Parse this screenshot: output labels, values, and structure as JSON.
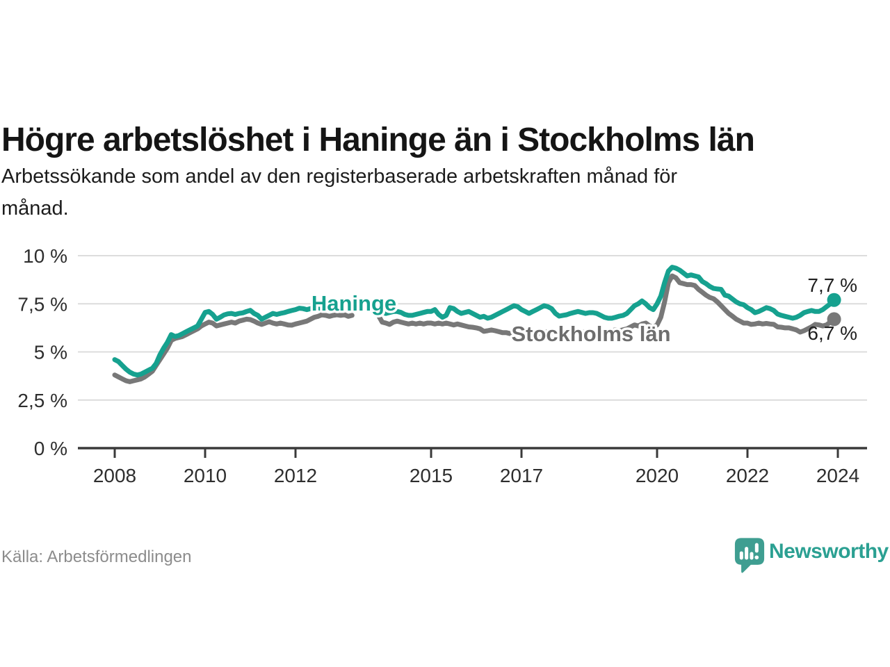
{
  "title": "Högre arbetslöshet i Haninge än i Stockholms län",
  "subtitle": {
    "line1": "Arbetssökande som andel av den registerbaserade arbetskraften månad för",
    "line2": "månad."
  },
  "source": "Källa: Arbetsförmedlingen",
  "branding": {
    "wordmark": "Newsworthy",
    "icon": "newsworthy-speech-bubble-bar-chart-icon",
    "icon_color": "#3f9e91",
    "wordmark_color": "#2ba092"
  },
  "colors": {
    "accent_teal": "#16a18f",
    "line_gray": "#787878",
    "grid": "#dcdcdc",
    "axis": "#3a3a3a",
    "axis_text": "#2e2e2e",
    "value_label_text": "#1f1f1f",
    "series_label_gray": "#6e6e6e",
    "background": "#ffffff"
  },
  "chart_data": {
    "type": "line",
    "title": "Högre arbetslöshet i Haninge än i Stockholms län",
    "xlabel": "",
    "ylabel": "",
    "frequency": "monthly",
    "x_start_year": 2008,
    "ylim": [
      0,
      10
    ],
    "grid": "horizontal",
    "legend_position": "inline-labels",
    "y_ticks": [
      {
        "value": 0,
        "label": "0 %"
      },
      {
        "value": 2.5,
        "label": "2,5 %"
      },
      {
        "value": 5,
        "label": "5 %"
      },
      {
        "value": 7.5,
        "label": "7,5 %"
      },
      {
        "value": 10,
        "label": "10 %"
      }
    ],
    "x_ticks": [
      "2008",
      "2010",
      "2012",
      "2015",
      "2017",
      "2020",
      "2022",
      "2024"
    ],
    "series": [
      {
        "name": "Haninge",
        "color": "#16a18f",
        "end_value": 7.7,
        "end_label": "7,7 %",
        "values": [
          4.6,
          4.5,
          4.3,
          4.1,
          3.95,
          3.85,
          3.8,
          3.85,
          3.95,
          4.05,
          4.15,
          4.4,
          4.85,
          5.2,
          5.5,
          5.9,
          5.8,
          5.85,
          5.95,
          6.05,
          6.15,
          6.25,
          6.35,
          6.7,
          7.05,
          7.1,
          6.95,
          6.7,
          6.8,
          6.92,
          6.98,
          7.0,
          6.95,
          7.0,
          7.03,
          7.1,
          7.16,
          7.0,
          6.9,
          6.7,
          6.8,
          6.9,
          7.0,
          6.95,
          7.0,
          7.04,
          7.1,
          7.15,
          7.2,
          7.27,
          7.25,
          7.2,
          7.25,
          7.3,
          7.3,
          7.25,
          7.3,
          7.3,
          7.3,
          7.3,
          7.3,
          7.25,
          7.3,
          7.2,
          null,
          null,
          null,
          null,
          null,
          null,
          7.0,
          7.05,
          7.0,
          7.05,
          7.1,
          7.1,
          7.05,
          6.95,
          6.9,
          6.9,
          6.95,
          7.0,
          7.05,
          7.1,
          7.1,
          7.2,
          6.95,
          6.8,
          6.9,
          7.3,
          7.25,
          7.1,
          7.0,
          7.05,
          7.1,
          7.0,
          6.9,
          6.8,
          6.85,
          6.75,
          6.8,
          6.9,
          7.0,
          7.1,
          7.2,
          7.3,
          7.4,
          7.35,
          7.2,
          7.1,
          7.0,
          7.1,
          7.2,
          7.3,
          7.4,
          7.35,
          7.25,
          7.0,
          6.86,
          6.9,
          6.93,
          7.0,
          7.05,
          7.1,
          7.05,
          7.0,
          7.04,
          7.04,
          7.0,
          6.9,
          6.8,
          6.75,
          6.75,
          6.8,
          6.86,
          6.9,
          7.0,
          7.2,
          7.4,
          7.5,
          7.65,
          7.5,
          7.3,
          7.2,
          7.5,
          7.9,
          8.6,
          9.2,
          9.4,
          9.35,
          9.25,
          9.1,
          8.95,
          9.0,
          8.95,
          8.9,
          8.66,
          8.55,
          8.4,
          8.3,
          8.27,
          8.25,
          7.95,
          7.9,
          7.75,
          7.6,
          7.5,
          7.45,
          7.3,
          7.2,
          7.04,
          7.1,
          7.2,
          7.3,
          7.25,
          7.15,
          6.97,
          6.9,
          6.85,
          6.8,
          6.75,
          6.8,
          6.9,
          7.04,
          7.1,
          7.15,
          7.1,
          7.1,
          7.2,
          7.35,
          7.5,
          7.7
        ]
      },
      {
        "name": "Stockholms län",
        "color": "#787878",
        "end_value": 6.7,
        "end_label": "6,7 %",
        "values": [
          3.8,
          3.7,
          3.6,
          3.5,
          3.45,
          3.5,
          3.55,
          3.6,
          3.7,
          3.85,
          4.0,
          4.3,
          4.6,
          4.9,
          5.2,
          5.6,
          5.7,
          5.75,
          5.8,
          5.9,
          6.0,
          6.1,
          6.2,
          6.35,
          6.45,
          6.55,
          6.5,
          6.35,
          6.4,
          6.45,
          6.5,
          6.55,
          6.5,
          6.6,
          6.65,
          6.7,
          6.68,
          6.6,
          6.5,
          6.43,
          6.5,
          6.57,
          6.5,
          6.45,
          6.5,
          6.45,
          6.4,
          6.39,
          6.45,
          6.5,
          6.55,
          6.6,
          6.7,
          6.8,
          6.85,
          6.93,
          6.9,
          6.85,
          6.9,
          6.93,
          6.9,
          6.93,
          6.85,
          6.9,
          null,
          null,
          null,
          null,
          null,
          null,
          6.9,
          6.55,
          6.5,
          6.43,
          6.55,
          6.6,
          6.55,
          6.5,
          6.45,
          6.5,
          6.45,
          6.5,
          6.45,
          6.5,
          6.5,
          6.45,
          6.5,
          6.45,
          6.5,
          6.45,
          6.4,
          6.45,
          6.4,
          6.35,
          6.3,
          6.28,
          6.25,
          6.2,
          6.07,
          6.1,
          6.14,
          6.1,
          6.05,
          6.0,
          6.0,
          5.95,
          6.0,
          6.05,
          6.0,
          5.95,
          6.0,
          6.05,
          6.0,
          5.95,
          6.0,
          6.05,
          6.0,
          5.95,
          6.0,
          6.05,
          6.0,
          6.05,
          6.1,
          6.05,
          6.0,
          6.05,
          6.1,
          6.05,
          6.0,
          6.05,
          6.1,
          6.05,
          6.1,
          6.15,
          6.1,
          6.15,
          6.2,
          6.3,
          6.4,
          6.35,
          6.45,
          6.5,
          6.35,
          6.3,
          6.4,
          6.8,
          7.6,
          8.6,
          8.95,
          8.85,
          8.6,
          8.55,
          8.5,
          8.5,
          8.45,
          8.25,
          8.1,
          7.95,
          7.83,
          7.76,
          7.6,
          7.4,
          7.2,
          7.0,
          6.86,
          6.7,
          6.6,
          6.5,
          6.5,
          6.43,
          6.45,
          6.5,
          6.45,
          6.48,
          6.45,
          6.43,
          6.3,
          6.28,
          6.25,
          6.25,
          6.2,
          6.14,
          6.03,
          6.1,
          6.2,
          6.3,
          6.43,
          6.4,
          6.35,
          6.4,
          6.55,
          6.7
        ]
      }
    ]
  }
}
